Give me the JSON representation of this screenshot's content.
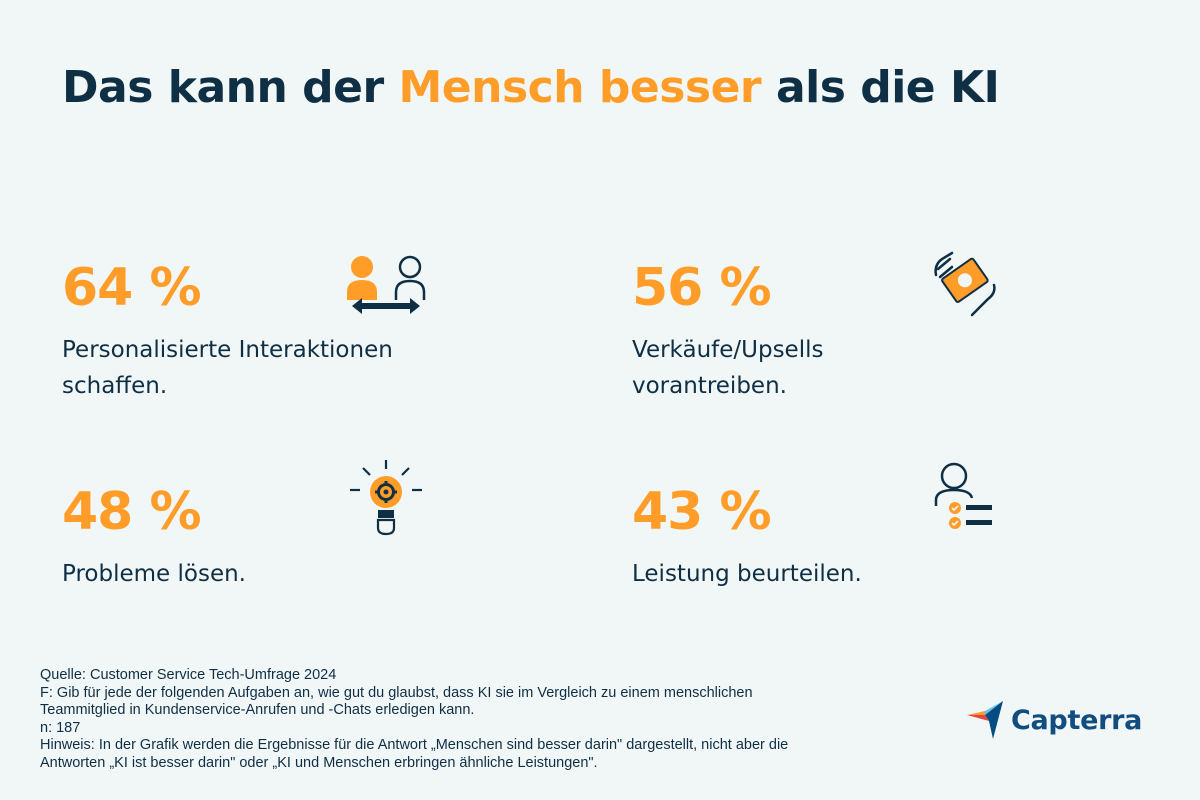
{
  "title": {
    "part1": "Das kann der ",
    "highlight": "Mensch besser",
    "part2": " als die KI"
  },
  "stats": [
    {
      "value": "64 %",
      "line1": "Personalisierte Interaktionen",
      "line2": "schaffen.",
      "icon": "people-exchange-icon"
    },
    {
      "value": "56 %",
      "line1": "Verkäufe/Upsells",
      "line2": "vorantreiben.",
      "icon": "hand-money-icon"
    },
    {
      "value": "48 %",
      "line1": "Probleme lösen.",
      "icon": "lightbulb-gear-icon"
    },
    {
      "value": "43 %",
      "line1": "Leistung beurteilen.",
      "icon": "person-checklist-icon"
    }
  ],
  "source": {
    "line1": "Quelle: Customer Service Tech-Umfrage 2024",
    "line2": "F: Gib für jede der folgenden Aufgaben an, wie gut du glaubst, dass KI sie im Vergleich zu einem menschlichen",
    "line3": "Teammitglied in Kundenservice-Anrufen und -Chats erledigen kann.",
    "line4": "n: 187",
    "line5": "Hinweis: In der Grafik werden die Ergebnisse für die Antwort „Menschen sind besser darin\" dargestellt, nicht aber die",
    "line6": "Antworten „KI ist besser darin\" oder „KI und Menschen erbringen ähnliche Leistungen\"."
  },
  "logo": {
    "text": "Capterra"
  },
  "colors": {
    "accent": "#ff9d28",
    "text": "#0f2f45",
    "background": "#f1f6f7",
    "brand": "#124d80"
  }
}
